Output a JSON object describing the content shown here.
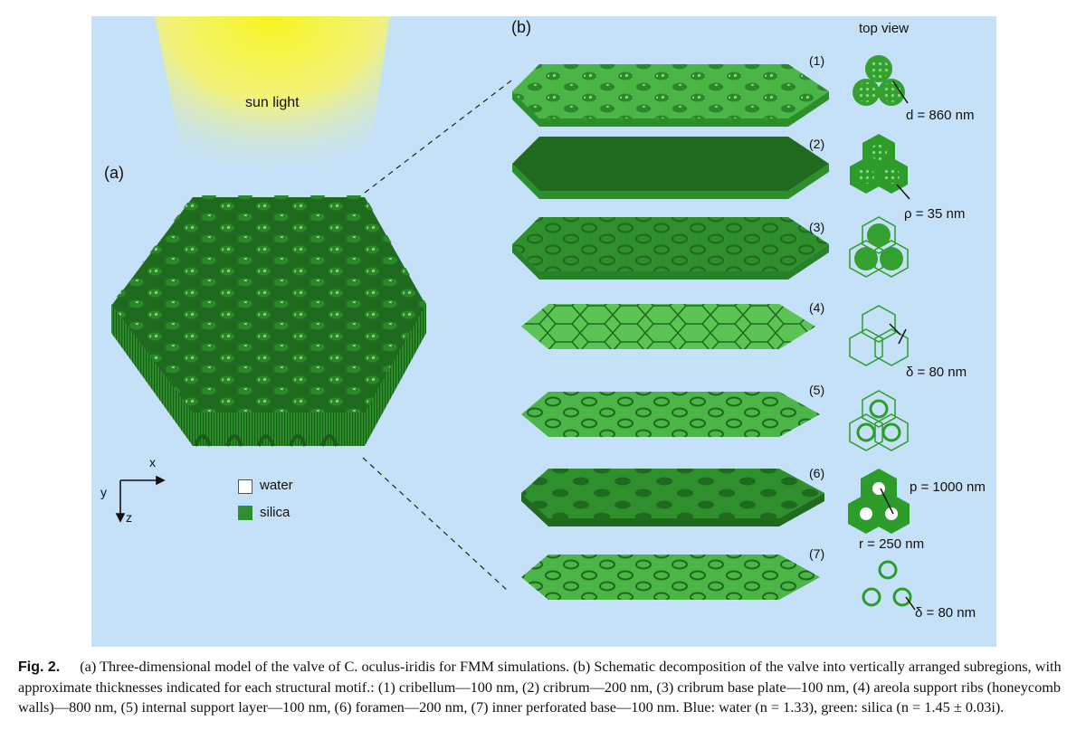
{
  "panel_a": {
    "label": "(a)",
    "sun_label": "sun light",
    "axes": {
      "x": "x",
      "y": "y",
      "z": "z"
    },
    "legend": [
      {
        "label": "water",
        "color": "#ffffff"
      },
      {
        "label": "silica",
        "color": "#2e8f2c"
      }
    ]
  },
  "panel_b": {
    "label": "(b)",
    "top_view_label": "top view",
    "layers": [
      {
        "index": "(1)",
        "annotation": "d = 860 nm",
        "annotation2": ""
      },
      {
        "index": "(2)",
        "annotation": "ρ = 35 nm",
        "annotation2": ""
      },
      {
        "index": "(3)",
        "annotation": "",
        "annotation2": ""
      },
      {
        "index": "(4)",
        "annotation": "δ = 80 nm",
        "annotation2": ""
      },
      {
        "index": "(5)",
        "annotation": "",
        "annotation2": ""
      },
      {
        "index": "(6)",
        "annotation": "p = 1000 nm",
        "annotation2": "r = 250 nm"
      },
      {
        "index": "(7)",
        "annotation": "δ = 80 nm",
        "annotation2": ""
      }
    ]
  },
  "colors": {
    "background": "#c4e1f8",
    "silica": "#2e8f2c",
    "silica_dark": "#1f6a1e",
    "silica_light": "#4fb94a",
    "sun": "#f4f230"
  },
  "caption": {
    "figure_number": "Fig. 2.",
    "text": "(a) Three-dimensional model of the valve of C. oculus-iridis for FMM simulations. (b) Schematic decomposition of the valve into vertically arranged subregions, with approximate thicknesses indicated for each structural motif.: (1) cribellum—100 nm, (2) cribrum—200 nm, (3) cribrum base plate—100 nm, (4) areola support ribs (honeycomb walls)—800 nm, (5) internal support layer—100 nm, (6) foramen—200 nm, (7) inner perforated base—100 nm. Blue: water (n = 1.33), green: silica (n = 1.45 ± 0.03i)."
  }
}
